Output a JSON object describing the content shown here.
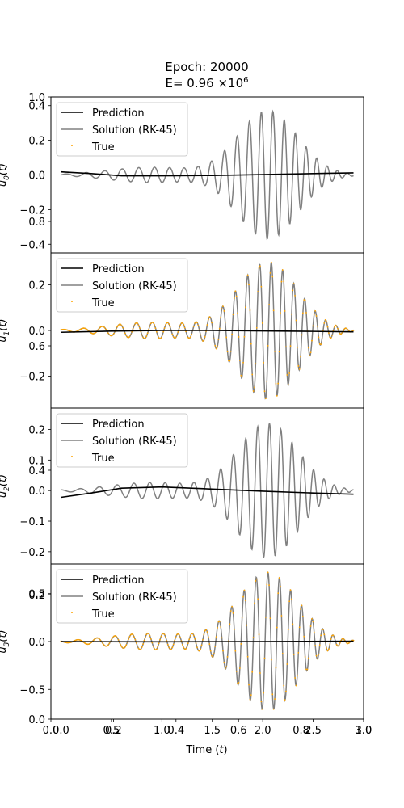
{
  "chart_data": {
    "type": "line",
    "title_line1": "Epoch: 20000",
    "title_line2_prefix": "E= 0.96 ×10",
    "title_line2_exp": "6",
    "xlabel_text": "Time (",
    "xlabel_var": "t",
    "xlabel_close": ")",
    "xlim": [
      -0.1,
      3.0
    ],
    "x_ticks": [
      0.0,
      0.5,
      1.0,
      1.5,
      2.0,
      2.5,
      3.0
    ],
    "x_tick_labels": [
      "0.0",
      "0.5",
      "1.0",
      "1.5",
      "2.0",
      "2.5",
      "3.0"
    ],
    "frame_ticks": [
      0.0,
      0.2,
      0.4,
      0.6,
      0.8,
      1.0
    ],
    "frame_tick_labels_x": [
      "0.0",
      "0.2",
      "0.4",
      "0.6",
      "0.8",
      "1.0"
    ],
    "frame_tick_labels_y": [
      "0.0",
      "0.2",
      "0.4",
      "0.6",
      "0.8",
      "1.0"
    ],
    "legend": [
      "Prediction",
      "Solution (RK-45)",
      "True"
    ],
    "colors": {
      "prediction": "#000000",
      "solution": "#808080",
      "true": "#ffa500"
    },
    "panels": [
      {
        "ylabel_base": "u",
        "ylabel_sub": "0",
        "ylabel_arg": "(t)",
        "ylim": [
          -0.45,
          0.45
        ],
        "y_ticks": [
          -0.4,
          -0.2,
          0.0,
          0.2,
          0.4
        ],
        "y_tick_labels": [
          "−0.4",
          "−0.2",
          "0.0",
          "0.2",
          "0.4"
        ],
        "amplitude": 0.37,
        "phase": 0.0,
        "prediction": [
          [
            0.0,
            0.018
          ],
          [
            0.3,
            0.008
          ],
          [
            0.6,
            -0.005
          ],
          [
            1.0,
            -0.005
          ],
          [
            1.5,
            -0.003
          ],
          [
            2.0,
            0.002
          ],
          [
            2.5,
            0.008
          ],
          [
            2.9,
            0.012
          ]
        ],
        "show_true": false
      },
      {
        "ylabel_base": "u",
        "ylabel_sub": "1",
        "ylabel_arg": "(t)",
        "ylim": [
          -0.34,
          0.34
        ],
        "y_ticks": [
          -0.2,
          0.0,
          0.2
        ],
        "y_tick_labels": [
          "−0.2",
          "0.0",
          "0.2"
        ],
        "amplitude": 0.3,
        "phase": 0.9,
        "prediction": [
          [
            0.0,
            -0.008
          ],
          [
            0.5,
            -0.003
          ],
          [
            1.0,
            0.0
          ],
          [
            1.5,
            0.0
          ],
          [
            2.0,
            -0.002
          ],
          [
            2.5,
            -0.004
          ],
          [
            2.9,
            -0.006
          ]
        ],
        "show_true": true
      },
      {
        "ylabel_base": "u",
        "ylabel_sub": "2",
        "ylabel_arg": "(t)",
        "ylim": [
          -0.24,
          0.27
        ],
        "y_ticks": [
          -0.2,
          -0.1,
          0.0,
          0.1,
          0.2
        ],
        "y_tick_labels": [
          "−0.2",
          "−0.1",
          "0.0",
          "0.1",
          "0.2"
        ],
        "amplitude": 0.22,
        "phase": 1.9,
        "prediction": [
          [
            0.0,
            -0.022
          ],
          [
            0.3,
            -0.008
          ],
          [
            0.6,
            0.008
          ],
          [
            1.0,
            0.012
          ],
          [
            1.5,
            0.005
          ],
          [
            2.0,
            -0.002
          ],
          [
            2.5,
            -0.008
          ],
          [
            2.9,
            -0.012
          ]
        ],
        "show_true": false
      },
      {
        "ylabel_base": "u",
        "ylabel_sub": "3",
        "ylabel_arg": "(t)",
        "ylim": [
          -0.81,
          0.81
        ],
        "y_ticks": [
          -0.5,
          0.0,
          0.5
        ],
        "y_tick_labels": [
          "−0.5",
          "0.0",
          "0.5"
        ],
        "amplitude": 0.72,
        "phase": 2.7,
        "prediction": [
          [
            0.0,
            0.0
          ],
          [
            1.0,
            -0.003
          ],
          [
            2.0,
            0.0
          ],
          [
            2.9,
            0.004
          ]
        ],
        "show_true": true
      }
    ]
  }
}
